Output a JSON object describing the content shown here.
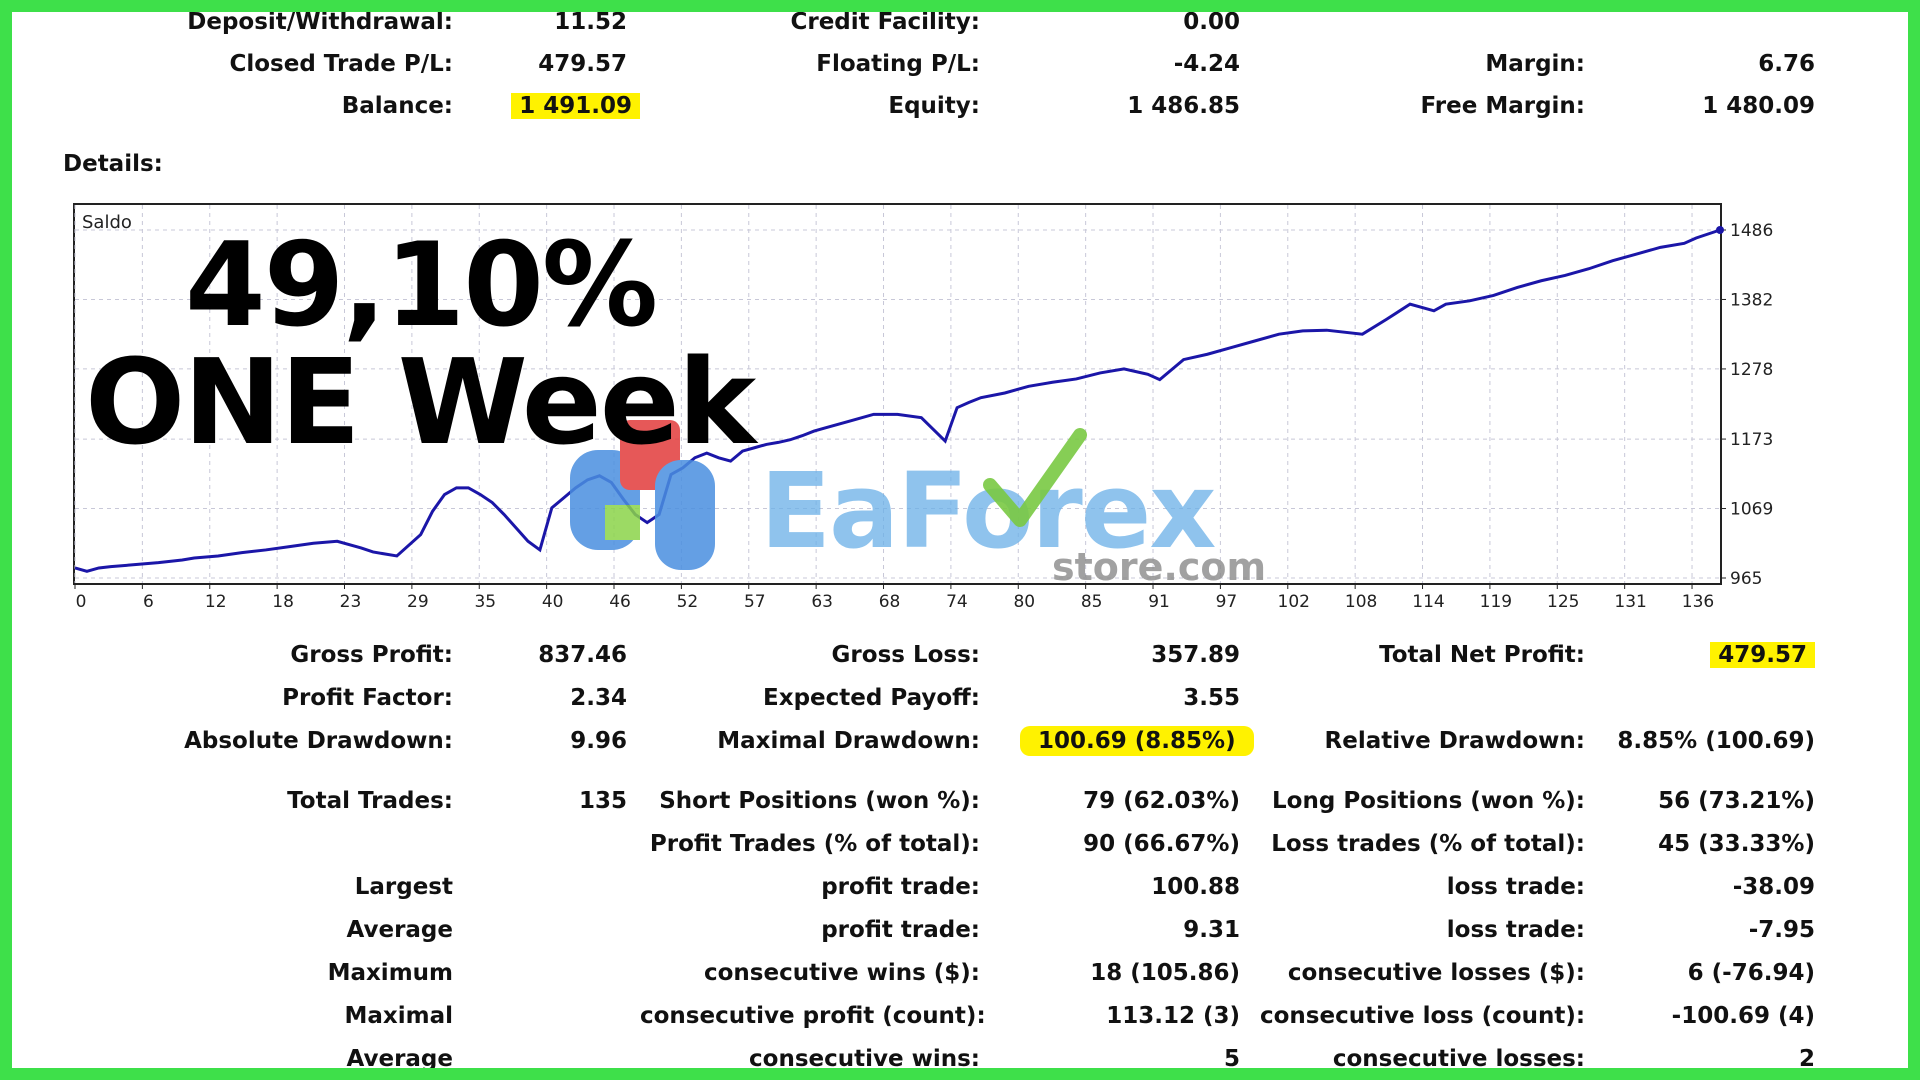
{
  "summary": {
    "row1": [
      {
        "label": "Deposit/Withdrawal:",
        "value": "11.52"
      },
      {
        "label": "Credit Facility:",
        "value": "0.00"
      }
    ],
    "row2": [
      {
        "label": "Closed Trade P/L:",
        "value": "479.57"
      },
      {
        "label": "Floating P/L:",
        "value": "-4.24"
      },
      {
        "label": "Margin:",
        "value": "6.76"
      }
    ],
    "row3": [
      {
        "label": "Balance:",
        "value": "1 491.09"
      },
      {
        "label": "Equity:",
        "value": "1 486.85"
      },
      {
        "label": "Free Margin:",
        "value": "1 480.09"
      }
    ]
  },
  "details_title": "Details:",
  "overlay": {
    "line1": "49,10%",
    "line2": "ONE Week"
  },
  "watermark": {
    "brand": "EaForex",
    "domain": "store.com"
  },
  "colors": {
    "frame": "#3ee04a",
    "highlight": "#fff200",
    "line": "#1b16a8",
    "grid": "#c8c8d8"
  },
  "chart_data": {
    "type": "line",
    "series_label": "Saldo",
    "x_ticks": [
      "0",
      "6",
      "12",
      "18",
      "23",
      "29",
      "35",
      "40",
      "46",
      "52",
      "57",
      "63",
      "68",
      "74",
      "80",
      "85",
      "91",
      "97",
      "102",
      "108",
      "114",
      "119",
      "125",
      "131",
      "136"
    ],
    "y_ticks": [
      "965",
      "1069",
      "1173",
      "1278",
      "1382",
      "1486"
    ],
    "ylim": [
      965,
      1486
    ],
    "xlim": [
      0,
      138
    ],
    "x": [
      0,
      1,
      2,
      3,
      5,
      7,
      9,
      10,
      12,
      14,
      16,
      18,
      20,
      22,
      24,
      25,
      27,
      29,
      30,
      31,
      32,
      33,
      34,
      35,
      36,
      37,
      38,
      39,
      40,
      41,
      42,
      43,
      44,
      45,
      46,
      47,
      48,
      49,
      50,
      51,
      52,
      53,
      54,
      55,
      56,
      57,
      58,
      59,
      60,
      61,
      62,
      63,
      65,
      67,
      69,
      71,
      73,
      74,
      75,
      76,
      78,
      80,
      82,
      84,
      86,
      88,
      90,
      91,
      93,
      95,
      97,
      99,
      101,
      103,
      105,
      108,
      110,
      112,
      114,
      115,
      117,
      119,
      121,
      123,
      125,
      127,
      129,
      131,
      133,
      135,
      136,
      137,
      138
    ],
    "y": [
      980,
      975,
      980,
      982,
      985,
      988,
      992,
      995,
      998,
      1003,
      1007,
      1012,
      1017,
      1020,
      1010,
      1004,
      998,
      1030,
      1065,
      1090,
      1100,
      1100,
      1090,
      1078,
      1060,
      1040,
      1020,
      1007,
      1070,
      1085,
      1100,
      1112,
      1118,
      1108,
      1083,
      1060,
      1048,
      1060,
      1120,
      1130,
      1145,
      1152,
      1145,
      1140,
      1155,
      1160,
      1165,
      1168,
      1172,
      1178,
      1185,
      1190,
      1200,
      1210,
      1210,
      1205,
      1170,
      1220,
      1228,
      1235,
      1242,
      1252,
      1258,
      1263,
      1272,
      1278,
      1270,
      1262,
      1292,
      1300,
      1310,
      1320,
      1330,
      1335,
      1336,
      1330,
      1352,
      1375,
      1365,
      1375,
      1380,
      1388,
      1400,
      1410,
      1418,
      1428,
      1440,
      1450,
      1460,
      1466,
      1474,
      1480,
      1486
    ]
  },
  "stats": [
    {
      "l1": "Gross Profit:",
      "v1": "837.46",
      "l2": "Gross Loss:",
      "v2": "357.89",
      "l3": "Total Net Profit:",
      "v3": "479.57"
    },
    {
      "l1": "Profit Factor:",
      "v1": "2.34",
      "l2": "Expected Payoff:",
      "v2": "3.55",
      "l3": "",
      "v3": ""
    },
    {
      "l1": "Absolute Drawdown:",
      "v1": "9.96",
      "l2": "Maximal Drawdown:",
      "v2": "100.69 (8.85%)",
      "l3": "Relative Drawdown:",
      "v3": "8.85% (100.69)"
    },
    {
      "l1": "Total Trades:",
      "v1": "135",
      "l2": "Short Positions (won %):",
      "v2": "79 (62.03%)",
      "l3": "Long Positions (won %):",
      "v3": "56 (73.21%)"
    },
    {
      "l1": "",
      "v1": "",
      "l2": "Profit Trades (% of total):",
      "v2": "90 (66.67%)",
      "l3": "Loss trades (% of total):",
      "v3": "45 (33.33%)"
    },
    {
      "l1": "Largest",
      "v1": "",
      "l2": "profit trade:",
      "v2": "100.88",
      "l3": "loss trade:",
      "v3": "-38.09"
    },
    {
      "l1": "Average",
      "v1": "",
      "l2": "profit trade:",
      "v2": "9.31",
      "l3": "loss trade:",
      "v3": "-7.95"
    },
    {
      "l1": "Maximum",
      "v1": "",
      "l2": "consecutive wins ($):",
      "v2": "18 (105.86)",
      "l3": "consecutive losses ($):",
      "v3": "6 (-76.94)"
    },
    {
      "l1": "Maximal",
      "v1": "",
      "l2": "consecutive profit (count):",
      "v2": "113.12 (3)",
      "l3": "consecutive loss (count):",
      "v3": "-100.69 (4)"
    },
    {
      "l1": "Average",
      "v1": "",
      "l2": "consecutive wins:",
      "v2": "5",
      "l3": "consecutive losses:",
      "v3": "2"
    }
  ]
}
